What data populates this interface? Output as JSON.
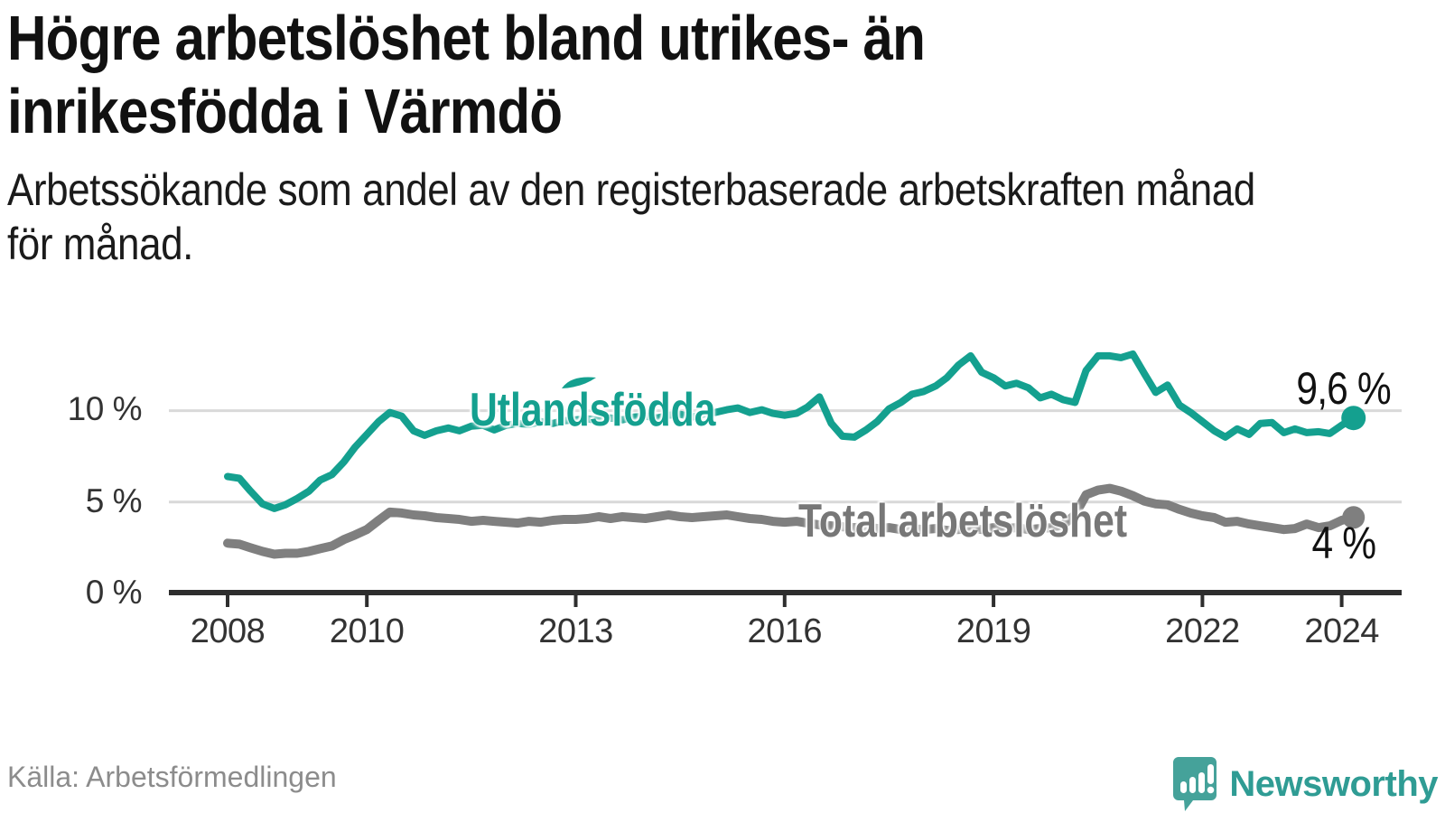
{
  "header": {
    "title_lines": [
      "Högre arbetslöshet bland utrikes- än",
      "inrikesfödda i Värmdö"
    ],
    "subtitle_lines": [
      "Arbetssökande som andel av den registerbaserade arbetskraften månad",
      "för månad."
    ]
  },
  "footer": {
    "source": "Källa: Arbetsförmedlingen",
    "brand_name": "Newsworthy",
    "logo_icon": "speech-bubble-bar-chart-icon"
  },
  "colors": {
    "foreign_series": "#14A08F",
    "total_series": "#7F7F7F",
    "total_label_text": "#777777",
    "gridline": "#D9D9D9",
    "axis_line": "#2E2E2E",
    "axis_text": "#333333",
    "value_label_text": "#111111",
    "source_text": "#8C8C8C",
    "brand_teal": "#2F9C94",
    "logo_bubble": "#45A29A"
  },
  "chart_data": {
    "type": "line",
    "title": "Högre arbetslöshet bland utrikes- än inrikesfödda i Värmdö",
    "subtitle": "Arbetssökande som andel av den registerbaserade arbetskraften månad för månad.",
    "xlabel": "",
    "ylabel": "",
    "grid": "horizontal",
    "legend_position": "inline-labels",
    "x_axis": {
      "range": [
        2008,
        2024.2
      ],
      "ticks": [
        2008,
        2010,
        2013,
        2016,
        2019,
        2022,
        2024
      ],
      "tick_labels": [
        "2008",
        "2010",
        "2013",
        "2016",
        "2019",
        "2022",
        "2024"
      ]
    },
    "y_axis": {
      "range": [
        0,
        13.5
      ],
      "ticks": [
        0,
        5,
        10
      ],
      "tick_labels": [
        "0 %",
        "5 %",
        "10 %"
      ],
      "gridlines_at": [
        5,
        10
      ]
    },
    "x": [
      2008,
      2008.17,
      2008.33,
      2008.5,
      2008.67,
      2008.83,
      2009,
      2009.17,
      2009.33,
      2009.5,
      2009.67,
      2009.83,
      2010,
      2010.17,
      2010.33,
      2010.5,
      2010.67,
      2010.83,
      2011,
      2011.17,
      2011.33,
      2011.5,
      2011.67,
      2011.83,
      2012,
      2012.17,
      2012.33,
      2012.5,
      2012.67,
      2012.83,
      2013,
      2013.17,
      2013.33,
      2013.5,
      2013.67,
      2013.83,
      2014,
      2014.17,
      2014.33,
      2014.5,
      2014.67,
      2014.83,
      2015,
      2015.17,
      2015.33,
      2015.5,
      2015.67,
      2015.83,
      2016,
      2016.17,
      2016.33,
      2016.5,
      2016.67,
      2016.83,
      2017,
      2017.17,
      2017.33,
      2017.5,
      2017.67,
      2017.83,
      2018,
      2018.17,
      2018.33,
      2018.5,
      2018.67,
      2018.83,
      2019,
      2019.17,
      2019.33,
      2019.5,
      2019.67,
      2019.83,
      2020,
      2020.17,
      2020.33,
      2020.5,
      2020.67,
      2020.83,
      2021,
      2021.17,
      2021.33,
      2021.5,
      2021.67,
      2021.83,
      2022,
      2022.17,
      2022.33,
      2022.5,
      2022.67,
      2022.83,
      2023,
      2023.17,
      2023.33,
      2023.5,
      2023.67,
      2023.83,
      2024,
      2024.17
    ],
    "series": [
      {
        "name": "Utlandsfödda",
        "color": "#14A08F",
        "end_label": "9,6 %",
        "last_value": 9.6,
        "values": [
          6.4,
          6.3,
          5.6,
          4.9,
          4.65,
          4.85,
          5.2,
          5.6,
          6.2,
          6.5,
          7.2,
          8.0,
          8.7,
          9.4,
          9.9,
          9.7,
          8.9,
          8.65,
          8.9,
          9.05,
          8.9,
          9.15,
          9.2,
          8.95,
          9.2,
          9.3,
          9.25,
          9.4,
          9.3,
          9.45,
          9.5,
          9.55,
          9.45,
          9.6,
          9.5,
          9.65,
          9.7,
          9.6,
          9.75,
          9.8,
          9.65,
          9.8,
          9.9,
          10.05,
          10.15,
          9.9,
          10.05,
          9.85,
          9.75,
          9.85,
          10.2,
          10.75,
          9.3,
          8.6,
          8.55,
          8.95,
          9.4,
          10.1,
          10.45,
          10.9,
          11.05,
          11.35,
          11.8,
          12.5,
          13.0,
          12.1,
          11.8,
          11.35,
          11.5,
          11.25,
          10.7,
          10.9,
          10.6,
          10.45,
          12.2,
          13.0,
          13.0,
          12.9,
          13.1,
          12.0,
          11.0,
          11.4,
          10.3,
          9.9,
          9.4,
          8.9,
          8.55,
          9.0,
          8.7,
          9.3,
          9.35,
          8.8,
          9.0,
          8.8,
          8.85,
          8.75,
          9.2,
          9.6
        ]
      },
      {
        "name": "Total arbetslöshet",
        "color": "#7F7F7F",
        "end_label": "4 %",
        "last_value": 4,
        "values": [
          2.75,
          2.7,
          2.5,
          2.3,
          2.15,
          2.2,
          2.2,
          2.3,
          2.45,
          2.6,
          2.95,
          3.2,
          3.5,
          4.0,
          4.45,
          4.4,
          4.3,
          4.25,
          4.15,
          4.1,
          4.05,
          3.95,
          4.0,
          3.95,
          3.9,
          3.85,
          3.95,
          3.9,
          4.0,
          4.05,
          4.05,
          4.1,
          4.2,
          4.1,
          4.2,
          4.15,
          4.1,
          4.2,
          4.3,
          4.2,
          4.15,
          4.2,
          4.25,
          4.3,
          4.2,
          4.1,
          4.05,
          3.95,
          3.9,
          3.95,
          3.85,
          3.75,
          3.7,
          3.65,
          3.6,
          3.65,
          3.55,
          3.6,
          3.5,
          3.55,
          3.5,
          3.55,
          3.45,
          3.5,
          3.55,
          3.5,
          3.6,
          3.55,
          3.6,
          3.5,
          3.55,
          3.6,
          3.75,
          4.3,
          5.4,
          5.65,
          5.75,
          5.6,
          5.35,
          5.05,
          4.9,
          4.85,
          4.6,
          4.4,
          4.25,
          4.15,
          3.9,
          3.95,
          3.8,
          3.7,
          3.6,
          3.5,
          3.55,
          3.8,
          3.6,
          3.7,
          4.0,
          4.16
        ]
      }
    ]
  }
}
